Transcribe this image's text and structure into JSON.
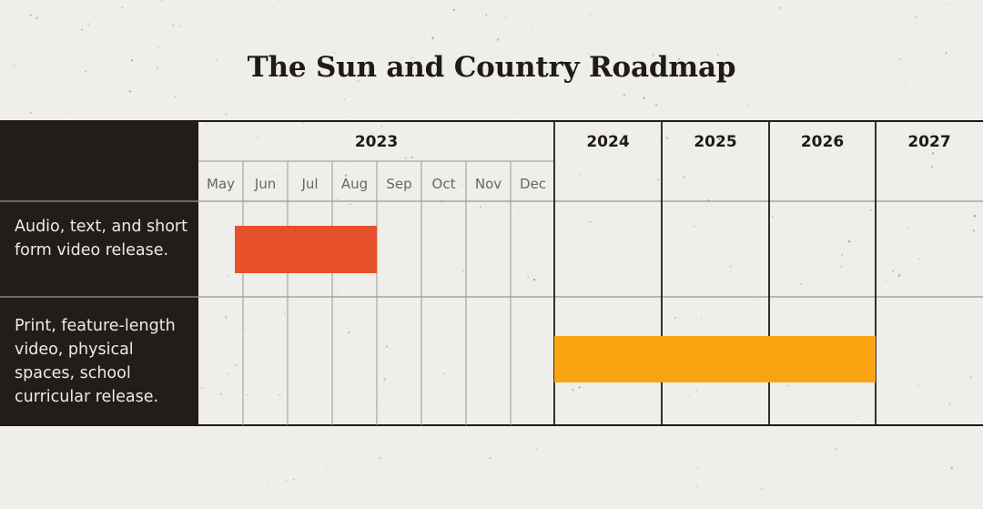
{
  "title": "The Sun and Country Roadmap",
  "years": [
    "2023",
    "2024",
    "2025",
    "2026",
    "2027"
  ],
  "months": [
    "May",
    "Jun",
    "Jul",
    "Aug",
    "Sep",
    "Oct",
    "Nov",
    "Dec"
  ],
  "rows": [
    {
      "label": "Audio, text, and short form video release.",
      "color": "#e5502b"
    },
    {
      "label": "Print, feature-length video, physical spaces, school curricular release.",
      "color": "#f9a311"
    }
  ],
  "colors": {
    "background": "#efeeea",
    "label_column": "#221d1a",
    "label_text": "#eeeae4",
    "grid_line": "#1f1b18"
  }
}
